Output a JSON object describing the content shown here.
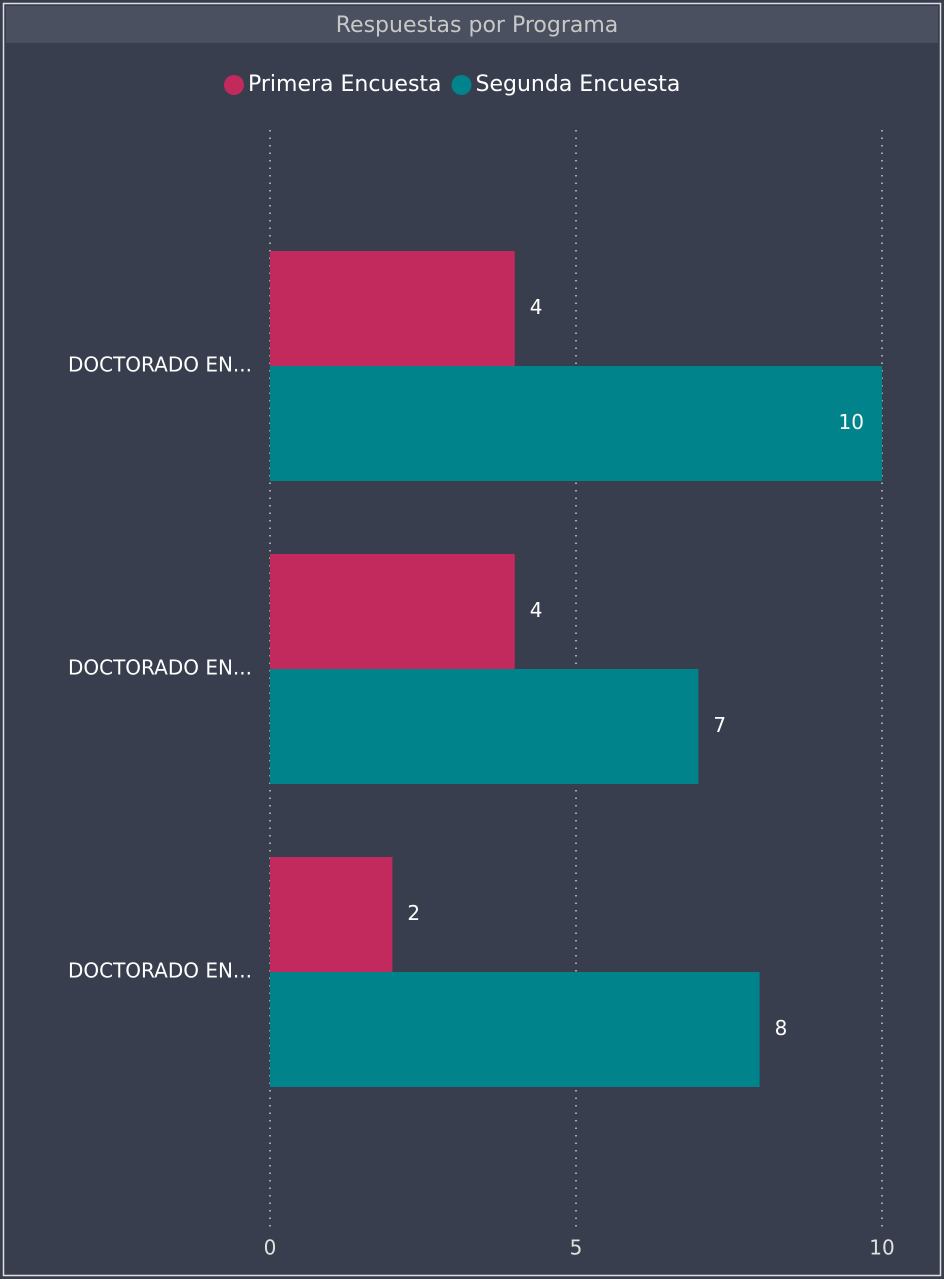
{
  "chart_data": {
    "type": "hbar",
    "title": "Respuestas por Programa",
    "categories": [
      "DOCTORADO EN...",
      "DOCTORADO EN...",
      "DOCTORADO EN..."
    ],
    "series": [
      {
        "name": "Primera Encuesta",
        "color": "#c2295c",
        "values": [
          4,
          4,
          2
        ]
      },
      {
        "name": "Segunda Encuesta",
        "color": "#00838a",
        "values": [
          10,
          7,
          8
        ]
      }
    ],
    "xlim": [
      0,
      10
    ],
    "xticks": [
      0,
      5,
      10
    ],
    "grid": true,
    "legend": "top"
  }
}
